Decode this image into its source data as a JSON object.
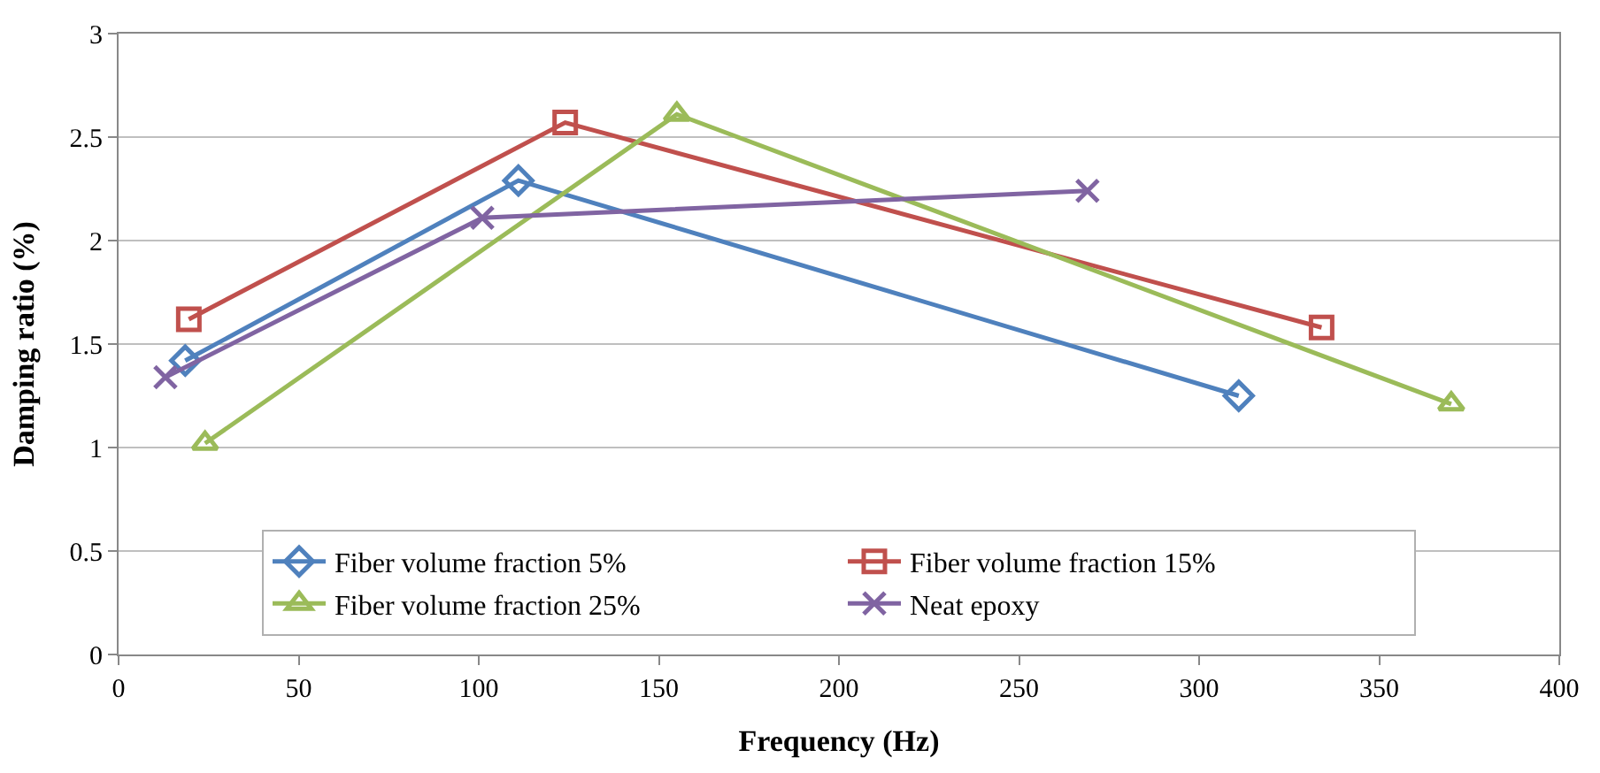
{
  "chart_data": {
    "type": "line",
    "xlabel": "Frequency (Hz)",
    "ylabel": "Damping ratio (%)",
    "xlim": [
      0,
      400
    ],
    "xticks": [
      0,
      50,
      100,
      150,
      200,
      250,
      300,
      350,
      400
    ],
    "ylim": [
      0,
      3
    ],
    "yticks": [
      0,
      0.5,
      1,
      1.5,
      2,
      2.5,
      3
    ],
    "grid": "y",
    "legend": "bottom",
    "series": [
      {
        "name": "Fiber volume fraction 5%",
        "color": "#4f81bd",
        "marker": "diamond",
        "x": [
          18.5,
          111,
          311
        ],
        "values": [
          1.42,
          2.29,
          1.25
        ]
      },
      {
        "name": "Fiber volume fraction 15%",
        "color": "#c0504d",
        "marker": "square",
        "x": [
          19.5,
          124,
          334
        ],
        "values": [
          1.62,
          2.57,
          1.58
        ]
      },
      {
        "name": "Fiber volume fraction 25%",
        "color": "#9bbb59",
        "marker": "triangle",
        "x": [
          24,
          155,
          370
        ],
        "values": [
          1.02,
          2.61,
          1.21
        ]
      },
      {
        "name": "Neat epoxy",
        "color": "#8064a2",
        "marker": "cross",
        "x": [
          13,
          101,
          269
        ],
        "values": [
          1.34,
          2.11,
          2.24
        ]
      }
    ]
  }
}
